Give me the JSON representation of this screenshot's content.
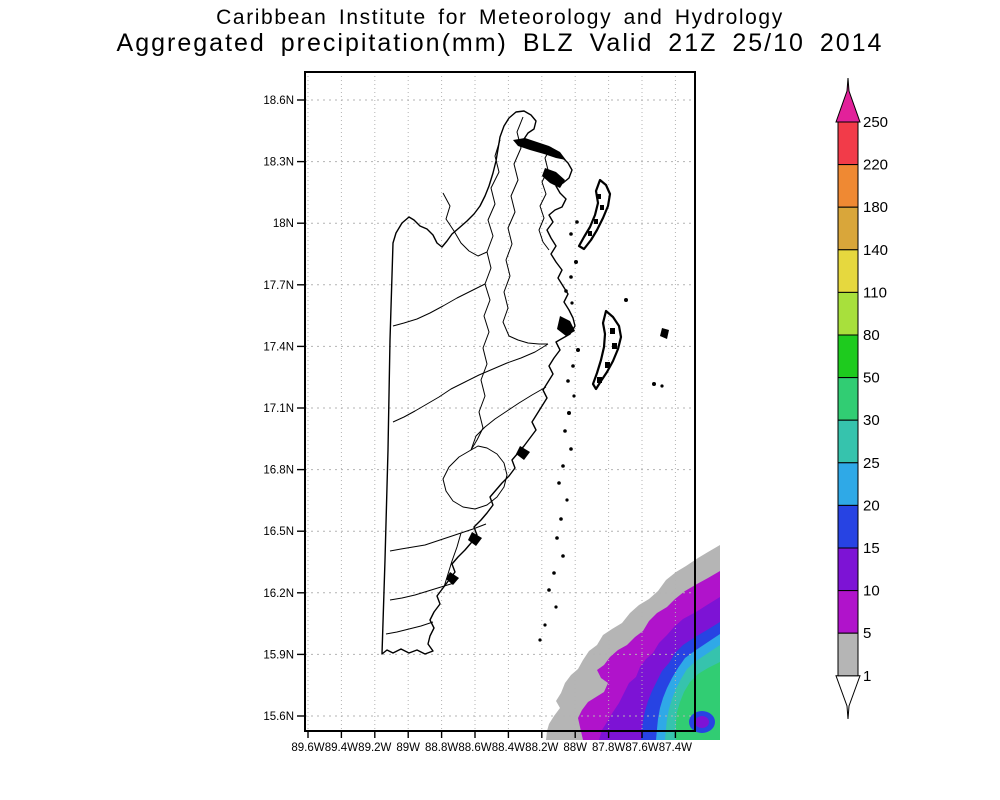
{
  "title": {
    "line1": "Caribbean Institute for Meteorology and Hydrology",
    "line2": "Aggregated precipitation(mm) BLZ Valid 21Z 25/10 2014"
  },
  "axes": {
    "lat_labels": [
      "18.6N",
      "18.3N",
      "18N",
      "17.7N",
      "17.4N",
      "17.1N",
      "16.8N",
      "16.5N",
      "16.2N",
      "15.9N",
      "15.6N"
    ],
    "lon_labels": [
      "89.6W",
      "89.4W",
      "89.2W",
      "89W",
      "88.8W",
      "88.6W",
      "88.4W",
      "88.2W",
      "88W",
      "87.8W",
      "87.6W",
      "87.4W"
    ]
  },
  "colorbar": {
    "boundary_labels": [
      "250",
      "220",
      "180",
      "140",
      "110",
      "80",
      "50",
      "30",
      "25",
      "20",
      "15",
      "10",
      "5",
      "1"
    ],
    "segment_colors": [
      "#f23b49",
      "#ef8933",
      "#d9a63a",
      "#e6d83e",
      "#a8e03c",
      "#1ecb1e",
      "#31cd73",
      "#36c3ad",
      "#2fa9e7",
      "#2743e3",
      "#7d13d5",
      "#b013cb",
      "#b5b5b5"
    ],
    "above_max_color": "#e2219a",
    "below_min_color": "#ffffff"
  },
  "chart_data": {
    "type": "heatmap",
    "title": "Aggregated precipitation(mm) BLZ Valid 21Z 25/10 2014",
    "units": "mm",
    "region": "BLZ (Belize)",
    "scale_levels": [
      1,
      5,
      10,
      15,
      20,
      25,
      30,
      50,
      80,
      110,
      140,
      180,
      220,
      250
    ],
    "lat_ticks": [
      18.6,
      18.3,
      18.0,
      17.7,
      17.4,
      17.1,
      16.8,
      16.5,
      16.2,
      15.9,
      15.6
    ],
    "lon_ticks": [
      -89.6,
      -89.4,
      -89.2,
      -89.0,
      -88.8,
      -88.6,
      -88.4,
      -88.2,
      -88.0,
      -87.8,
      -87.6,
      -87.4
    ],
    "grid": "dotted",
    "legend_position": "right vertical colorbar",
    "shaded_field_note": "Precipitation swath confined to the south-east offshore corner of the domain; concentric bands from 1 mm (gray) through 5,10,15,20,25 mm up to a 30-50 mm (green) core near 87.4W 15.7N"
  }
}
